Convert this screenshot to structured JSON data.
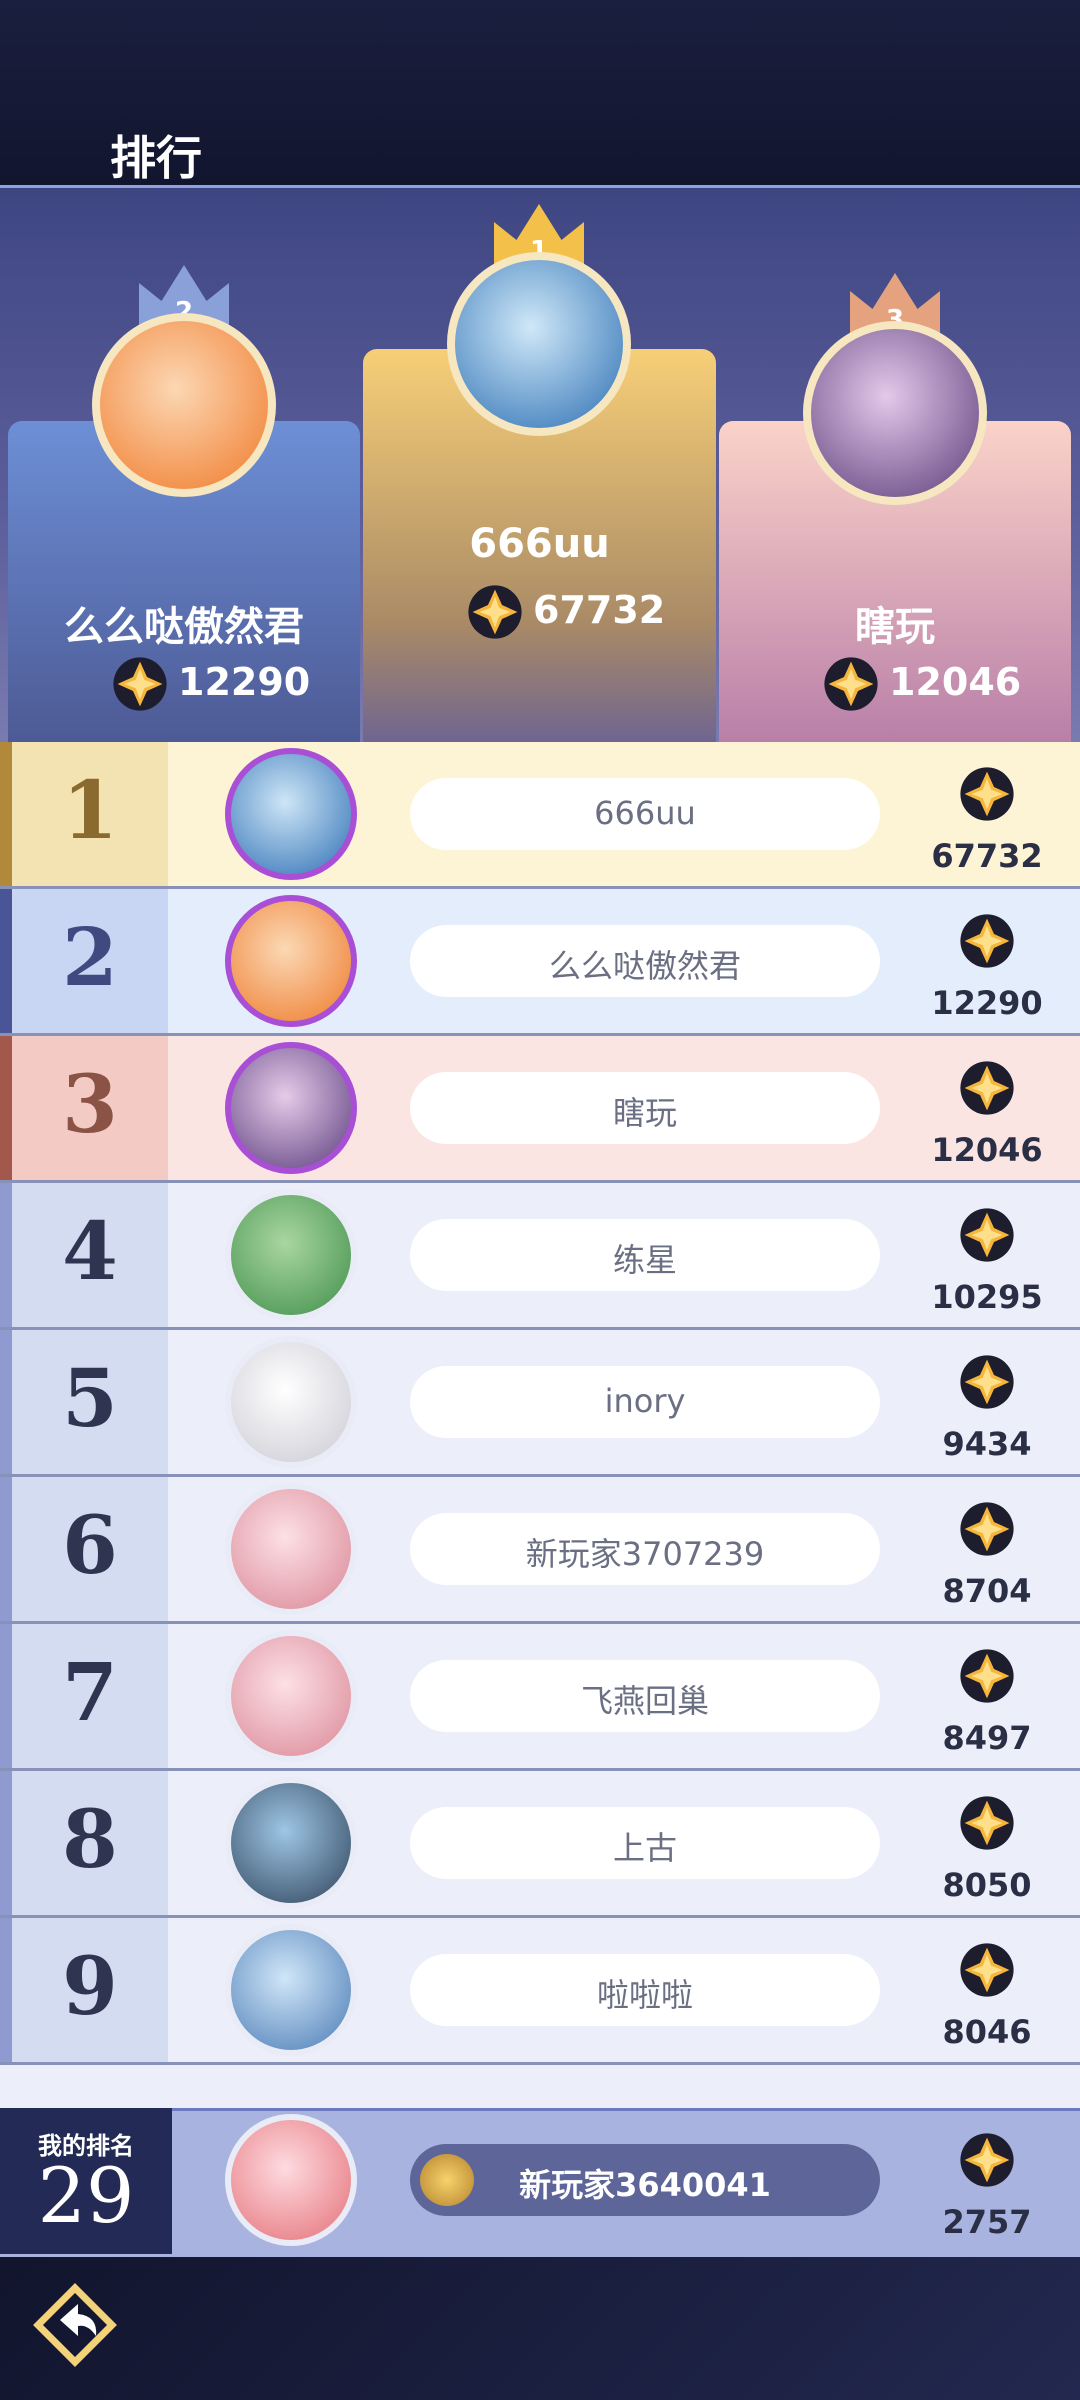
{
  "header": {
    "title": "排行"
  },
  "podium": [
    {
      "rank": "2",
      "name": "么么哒傲然君",
      "score": "12290"
    },
    {
      "rank": "1",
      "name": "666uu",
      "score": "67732"
    },
    {
      "rank": "3",
      "name": "瞎玩",
      "score": "12046"
    }
  ],
  "rows": [
    {
      "rank": "1",
      "name": "666uu",
      "score": "67732"
    },
    {
      "rank": "2",
      "name": "么么哒傲然君",
      "score": "12290"
    },
    {
      "rank": "3",
      "name": "瞎玩",
      "score": "12046"
    },
    {
      "rank": "4",
      "name": "练星",
      "score": "10295"
    },
    {
      "rank": "5",
      "name": "inory",
      "score": "9434"
    },
    {
      "rank": "6",
      "name": "新玩家3707239",
      "score": "8704"
    },
    {
      "rank": "7",
      "name": "飞燕回巢",
      "score": "8497"
    },
    {
      "rank": "8",
      "name": "上古",
      "score": "8050"
    },
    {
      "rank": "9",
      "name": "啦啦啦",
      "score": "8046"
    }
  ],
  "my_rank": {
    "label": "我的排名",
    "rank": "29",
    "name": "新玩家3640041",
    "score": "2757"
  }
}
